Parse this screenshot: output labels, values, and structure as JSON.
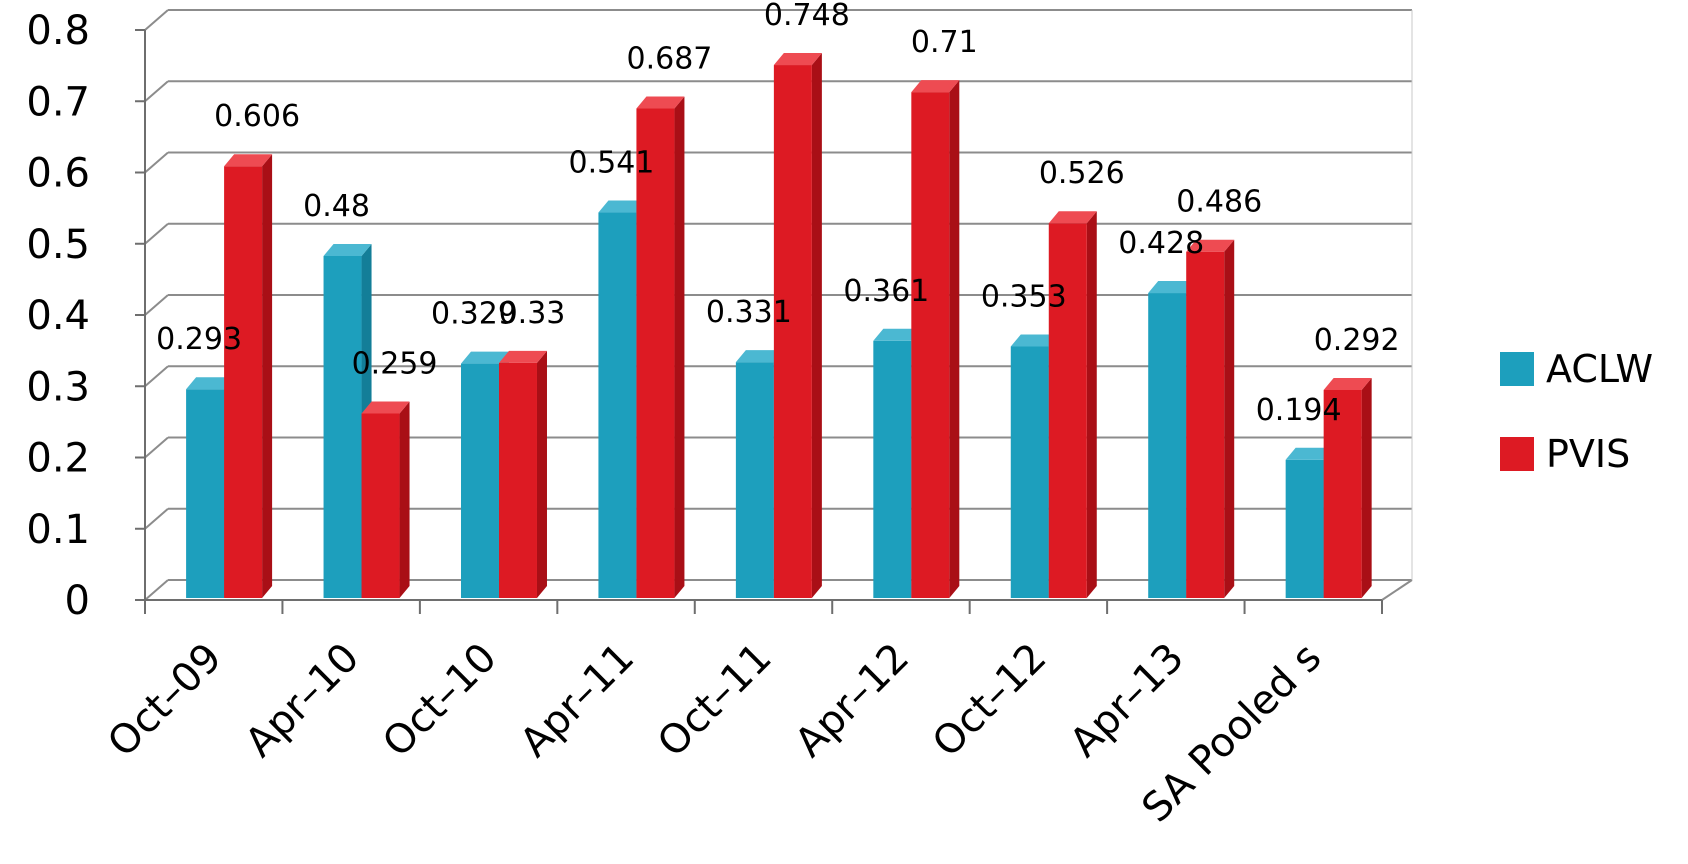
{
  "chart_data": {
    "type": "bar",
    "categories": [
      "Oct–09",
      "Apr–10",
      "Oct–10",
      "Apr–11",
      "Oct–11",
      "Apr–12",
      "Oct–12",
      "Apr–13",
      "SA Pooled s"
    ],
    "series": [
      {
        "name": "ACLW",
        "values": [
          0.293,
          0.48,
          0.329,
          0.541,
          0.331,
          0.361,
          0.353,
          0.428,
          0.194
        ],
        "labels": [
          "0.293",
          "0.48",
          "0.329",
          "0.541",
          "0.331",
          "0.361",
          "0.353",
          "0.428",
          "0.194"
        ],
        "color": "#1d9fbd",
        "top_color": "#4bb8d2",
        "side_color": "#137e98"
      },
      {
        "name": "PVIS",
        "values": [
          0.606,
          0.259,
          0.33,
          0.687,
          0.748,
          0.71,
          0.526,
          0.486,
          0.292
        ],
        "labels": [
          "0.606",
          "0.259",
          "0.33",
          "0.687",
          "0.748",
          "0.71",
          "0.526",
          "0.486",
          "0.292"
        ],
        "color": "#dd1a23",
        "top_color": "#ee4b52",
        "side_color": "#a90f16"
      }
    ],
    "y_ticks": [
      "0",
      "0.1",
      "0.2",
      "0.3",
      "0.4",
      "0.5",
      "0.6",
      "0.7",
      "0.8"
    ],
    "ylim": [
      0,
      0.8
    ],
    "grid": true,
    "legend": "right",
    "title": "",
    "xlabel": "",
    "ylabel": ""
  }
}
